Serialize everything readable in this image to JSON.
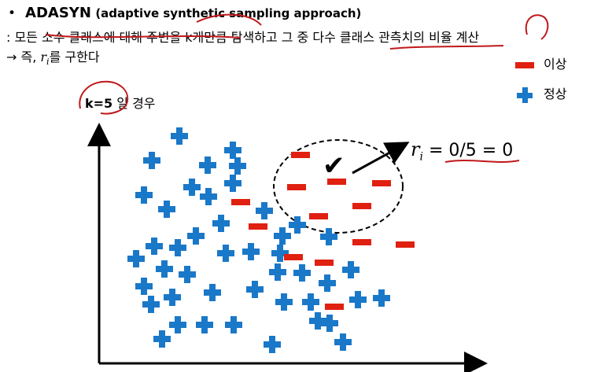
{
  "slide": {
    "bullet": "•",
    "title": "ADASYN",
    "title_sub": "(adaptive synthetic sampling approach)",
    "line2": ": 모든 소수 클래스에 대해 주변을 k개만큼 탐색하고 그 중 다수 클래스 관측치의 비율 계산",
    "line3_prefix": "→ 즉, ",
    "line3_var": "r",
    "line3_sub": "i",
    "line3_suffix": "를 구한다"
  },
  "legend": {
    "minority_label": "이상",
    "majority_label": "정상"
  },
  "plot": {
    "k_label": "k=5",
    "k_rest": " 일 경우",
    "ratio_var": "r",
    "ratio_sub": "i",
    "ratio_text": " = 0/5 = 0",
    "check_mark": "✔",
    "colors": {
      "minority": "#e02010",
      "majority": "#1a78c8",
      "annotation": "#c0181a"
    },
    "minority_points": [
      [
        382,
        197
      ],
      [
        428,
        231
      ],
      [
        377,
        238
      ],
      [
        485,
        233
      ],
      [
        306,
        257
      ],
      [
        460,
        262
      ],
      [
        405,
        275
      ],
      [
        328,
        288
      ],
      [
        460,
        308
      ],
      [
        515,
        311
      ],
      [
        373,
        327
      ],
      [
        412,
        334
      ],
      [
        425,
        390
      ]
    ],
    "majority_points": [
      [
        228,
        173
      ],
      [
        296,
        191
      ],
      [
        193,
        204
      ],
      [
        264,
        210
      ],
      [
        302,
        211
      ],
      [
        244,
        238
      ],
      [
        296,
        233
      ],
      [
        183,
        248
      ],
      [
        265,
        250
      ],
      [
        212,
        266
      ],
      [
        336,
        268
      ],
      [
        378,
        286
      ],
      [
        281,
        284
      ],
      [
        249,
        300
      ],
      [
        359,
        300
      ],
      [
        418,
        301
      ],
      [
        196,
        313
      ],
      [
        226,
        315
      ],
      [
        319,
        320
      ],
      [
        356,
        322
      ],
      [
        287,
        322
      ],
      [
        173,
        329
      ],
      [
        209,
        342
      ],
      [
        238,
        349
      ],
      [
        353,
        346
      ],
      [
        384,
        347
      ],
      [
        446,
        343
      ],
      [
        183,
        364
      ],
      [
        270,
        372
      ],
      [
        324,
        368
      ],
      [
        416,
        360
      ],
      [
        192,
        387
      ],
      [
        219,
        378
      ],
      [
        361,
        384
      ],
      [
        395,
        384
      ],
      [
        455,
        381
      ],
      [
        485,
        379
      ],
      [
        419,
        411
      ],
      [
        226,
        413
      ],
      [
        260,
        413
      ],
      [
        297,
        413
      ],
      [
        404,
        408
      ],
      [
        206,
        431
      ],
      [
        346,
        438
      ],
      [
        436,
        435
      ]
    ]
  }
}
